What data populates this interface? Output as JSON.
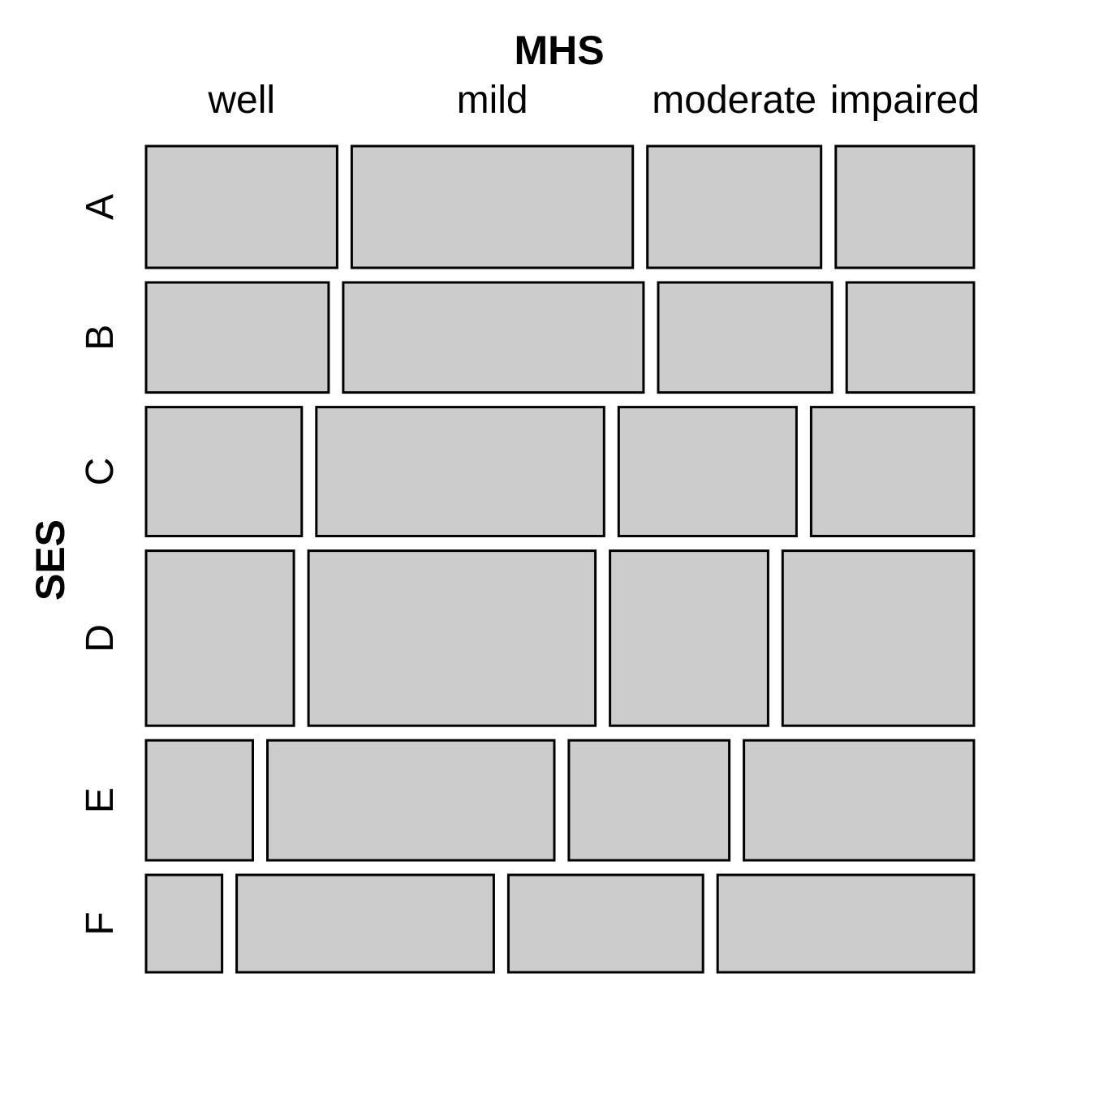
{
  "chart_data": {
    "type": "mosaic",
    "x_variable": "MHS",
    "y_variable": "SES",
    "x_categories": [
      "well",
      "mild",
      "moderate",
      "impaired"
    ],
    "y_categories": [
      "A",
      "B",
      "C",
      "D",
      "E",
      "F"
    ],
    "row_proportions": [
      0.135,
      0.122,
      0.143,
      0.194,
      0.133,
      0.108
    ],
    "cell_proportions": [
      [
        0.242,
        0.356,
        0.22,
        0.175
      ],
      [
        0.231,
        0.38,
        0.22,
        0.161
      ],
      [
        0.197,
        0.364,
        0.225,
        0.206
      ],
      [
        0.187,
        0.363,
        0.2,
        0.242
      ],
      [
        0.135,
        0.363,
        0.203,
        0.291
      ],
      [
        0.096,
        0.325,
        0.246,
        0.324
      ]
    ],
    "tile_color": "#cccccc",
    "border_color": "#000000"
  }
}
